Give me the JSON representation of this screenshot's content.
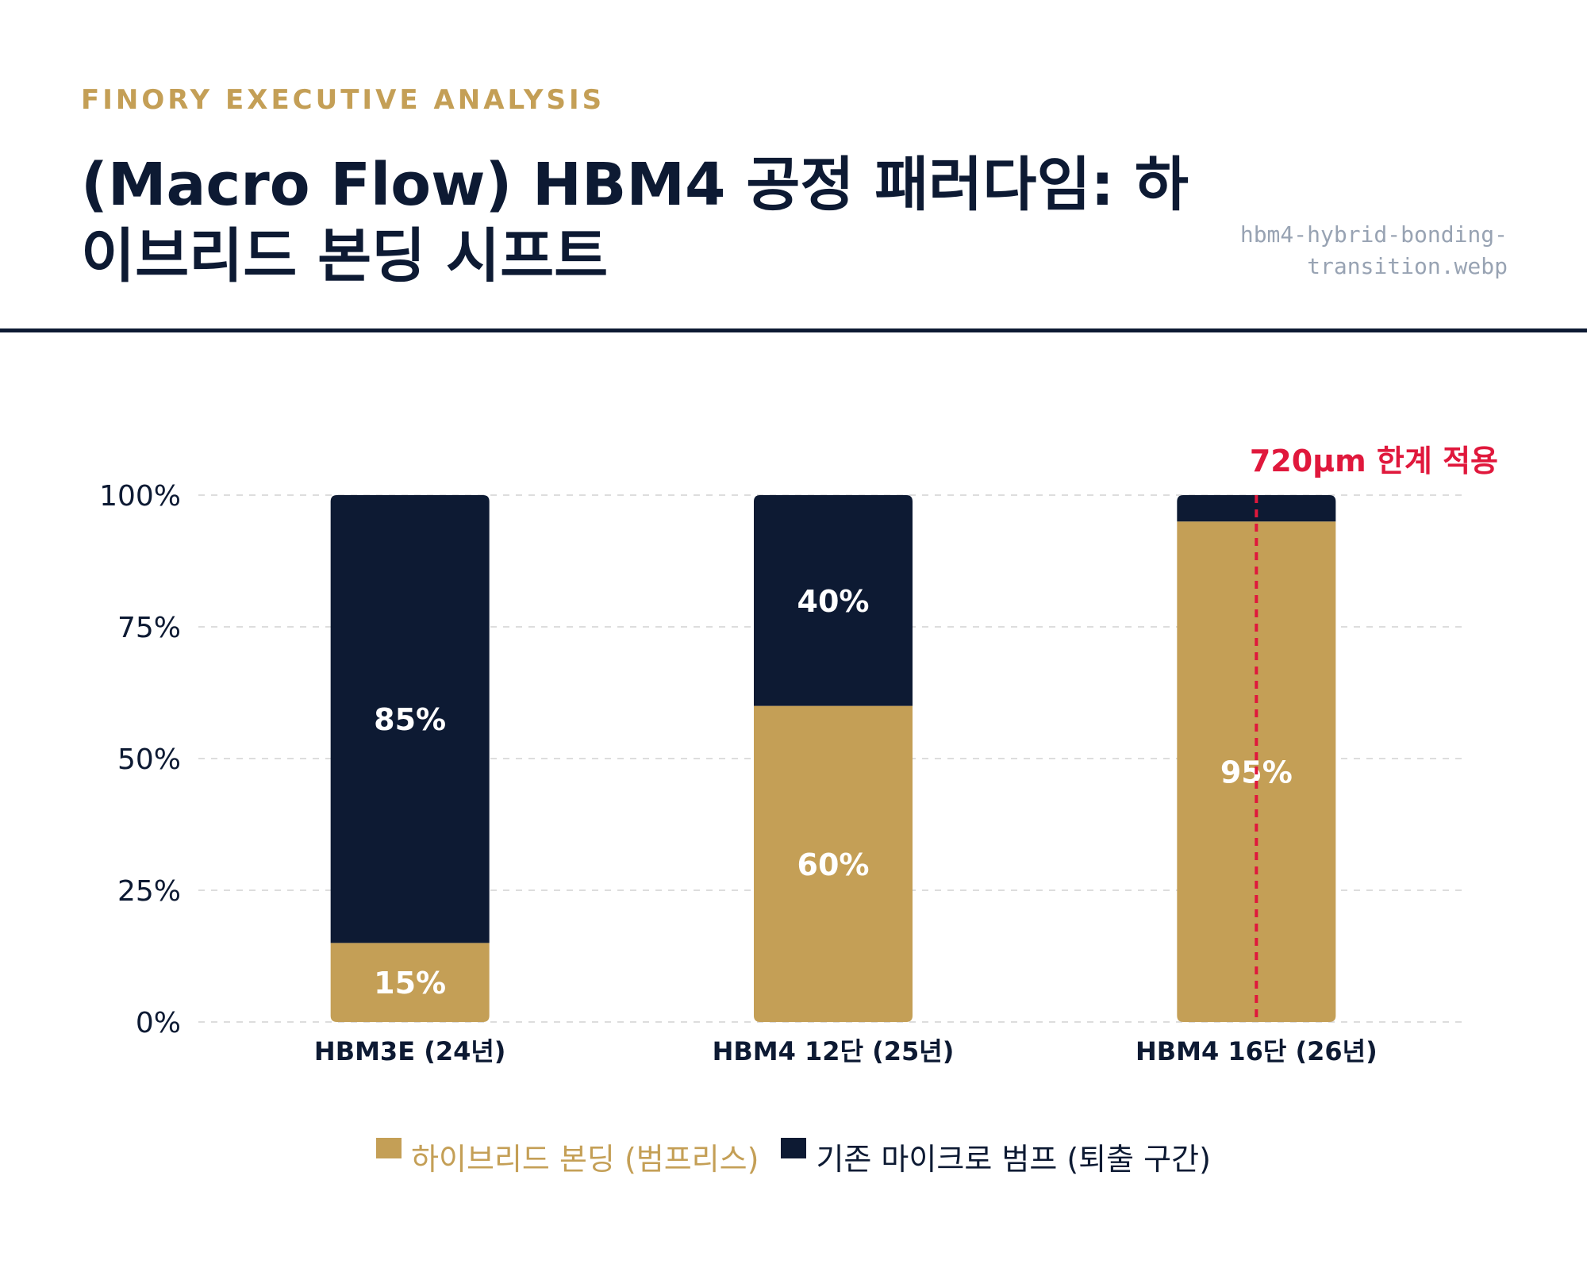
{
  "header": {
    "eyebrow": "FINORY EXECUTIVE ANALYSIS",
    "title": "(Macro Flow) HBM4 공정 패러다임: 하이브리드 본딩 시프트",
    "filename": "hbm4-hybrid-bonding-transition.webp"
  },
  "colors": {
    "hybrid": "#c49f56",
    "bump": "#0d1a33",
    "annotation": "#e0183c",
    "grid": "#dddddd",
    "text": "#0d1a33"
  },
  "legend": {
    "hybrid_label": "하이브리드 본딩 (범프리스)",
    "bump_label": "기존 마이크로 범프 (퇴출 구간)"
  },
  "chart_data": {
    "type": "bar",
    "stacked": true,
    "categories": [
      "HBM3E (24년)",
      "HBM4 12단 (25년)",
      "HBM4 16단 (26년)"
    ],
    "series": [
      {
        "name": "하이브리드 본딩 (범프리스)",
        "values": [
          15,
          60,
          95
        ],
        "labels": [
          "15%",
          "60%",
          "95%"
        ]
      },
      {
        "name": "기존 마이크로 범프 (퇴출 구간)",
        "values": [
          85,
          40,
          5
        ],
        "labels": [
          "85%",
          "40%",
          ""
        ]
      }
    ],
    "ylim": [
      0,
      100
    ],
    "yticks": [
      "0%",
      "25%",
      "50%",
      "75%",
      "100%"
    ],
    "grid": true,
    "legend_position": "bottom",
    "annotation": {
      "text": "720µm 한계 적용",
      "category_index": 2
    }
  }
}
